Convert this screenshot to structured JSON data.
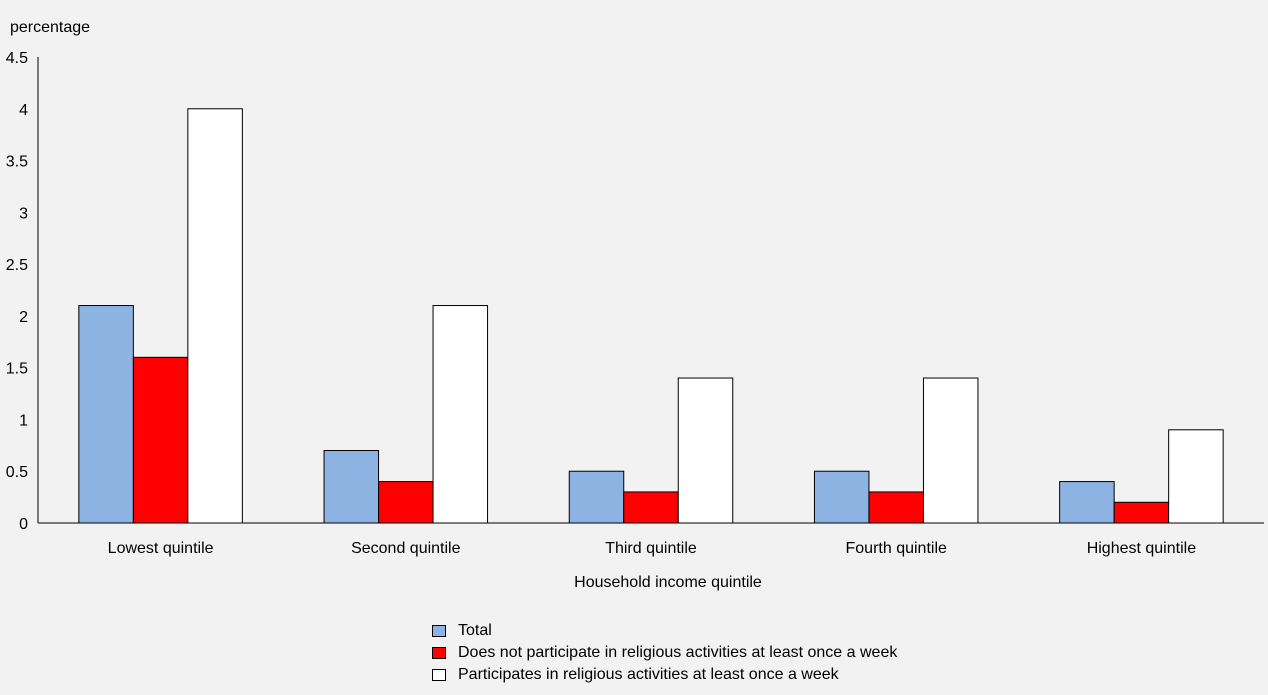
{
  "chart_data": {
    "type": "bar",
    "ylabel": "percentage",
    "xlabel": "Household income quintile",
    "ylim": [
      0,
      4.5
    ],
    "yticks": [
      "0",
      "0.5",
      "1",
      "1.5",
      "2",
      "2.5",
      "3",
      "3.5",
      "4",
      "4.5"
    ],
    "grid": false,
    "legend_position": "bottom",
    "categories": [
      "Lowest quintile",
      "Second quintile",
      "Third quintile",
      "Fourth quintile",
      "Highest quintile"
    ],
    "series": [
      {
        "name": "Total",
        "color": "#8db3e2",
        "values": [
          2.1,
          0.7,
          0.5,
          0.5,
          0.4
        ]
      },
      {
        "name": "Does not participate in religious activities at least once a week",
        "color": "#ff0000",
        "values": [
          1.6,
          0.4,
          0.3,
          0.3,
          0.2
        ]
      },
      {
        "name": "Participates in religious activities at least once a week",
        "color": "#ffffff",
        "values": [
          4.0,
          2.1,
          1.4,
          1.4,
          0.9
        ]
      }
    ]
  }
}
